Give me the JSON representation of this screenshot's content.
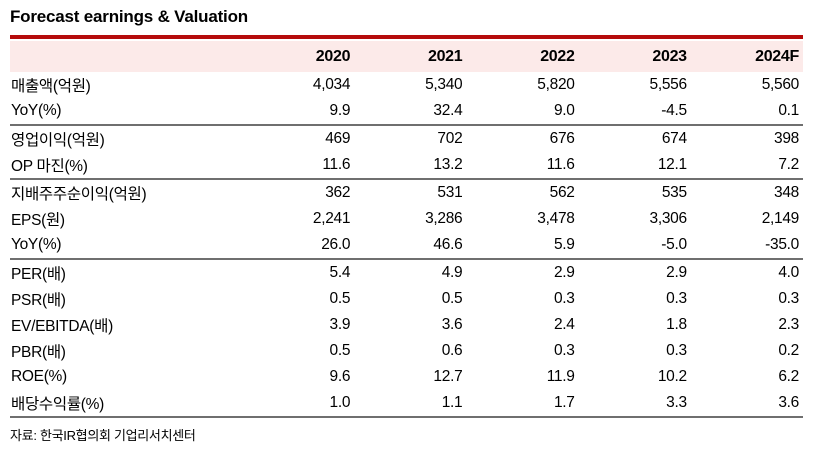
{
  "title": "Forecast earnings & Valuation",
  "source": "자료: 한국IR협의회 기업리서치센터",
  "colors": {
    "accent_line": "#b50b0b",
    "header_bg": "#fceae9",
    "section_divider": "#6f6f6f",
    "text": "#000000"
  },
  "table": {
    "columns": [
      "",
      "2020",
      "2021",
      "2022",
      "2023",
      "2024F"
    ],
    "sections": [
      {
        "rows": [
          {
            "label": "매출액(억원)",
            "values": [
              "4,034",
              "5,340",
              "5,820",
              "5,556",
              "5,560"
            ]
          },
          {
            "label": "YoY(%)",
            "values": [
              "9.9",
              "32.4",
              "9.0",
              "-4.5",
              "0.1"
            ]
          }
        ]
      },
      {
        "rows": [
          {
            "label": "영업이익(억원)",
            "values": [
              "469",
              "702",
              "676",
              "674",
              "398"
            ]
          },
          {
            "label": "OP 마진(%)",
            "values": [
              "11.6",
              "13.2",
              "11.6",
              "12.1",
              "7.2"
            ]
          }
        ]
      },
      {
        "rows": [
          {
            "label": "지배주주순이익(억원)",
            "values": [
              "362",
              "531",
              "562",
              "535",
              "348"
            ]
          },
          {
            "label": "EPS(원)",
            "values": [
              "2,241",
              "3,286",
              "3,478",
              "3,306",
              "2,149"
            ]
          },
          {
            "label": "YoY(%)",
            "values": [
              "26.0",
              "46.6",
              "5.9",
              "-5.0",
              "-35.0"
            ]
          }
        ]
      },
      {
        "rows": [
          {
            "label": "PER(배)",
            "values": [
              "5.4",
              "4.9",
              "2.9",
              "2.9",
              "4.0"
            ]
          },
          {
            "label": "PSR(배)",
            "values": [
              "0.5",
              "0.5",
              "0.3",
              "0.3",
              "0.3"
            ]
          },
          {
            "label": "EV/EBITDA(배)",
            "values": [
              "3.9",
              "3.6",
              "2.4",
              "1.8",
              "2.3"
            ]
          },
          {
            "label": "PBR(배)",
            "values": [
              "0.5",
              "0.6",
              "0.3",
              "0.3",
              "0.2"
            ]
          },
          {
            "label": "ROE(%)",
            "values": [
              "9.6",
              "12.7",
              "11.9",
              "10.2",
              "6.2"
            ]
          },
          {
            "label": "배당수익률(%)",
            "values": [
              "1.0",
              "1.1",
              "1.7",
              "3.3",
              "3.6"
            ]
          }
        ]
      }
    ]
  }
}
